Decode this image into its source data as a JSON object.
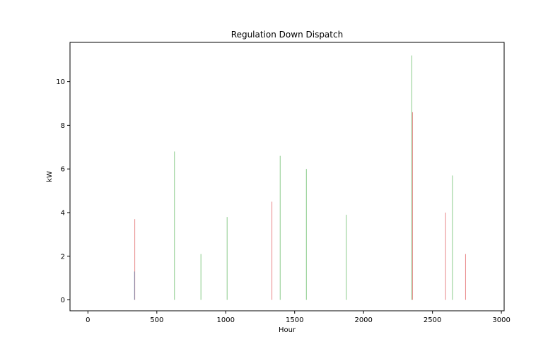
{
  "chart_data": {
    "type": "bar",
    "title": "Regulation Down Dispatch",
    "xlabel": "Hour",
    "ylabel": "kW",
    "xlim": [
      -130,
      3020
    ],
    "ylim": [
      -0.5,
      11.8
    ],
    "xticks": [
      0,
      500,
      1000,
      1500,
      2000,
      2500,
      3000
    ],
    "yticks": [
      0,
      2,
      4,
      6,
      8,
      10
    ],
    "grid": false,
    "legend": "none",
    "colors": {
      "series_a": "#2ca02c",
      "series_b": "#d62728",
      "series_c": "#1f77b4"
    },
    "series": [
      {
        "color_key": "series_a",
        "x": [
          628,
          820,
          1010,
          1395,
          1585,
          1875,
          2350,
          2645
        ],
        "values": [
          6.8,
          2.1,
          3.8,
          6.6,
          6.0,
          3.9,
          11.2,
          5.7
        ]
      },
      {
        "color_key": "series_b",
        "x": [
          340,
          1335,
          2355,
          2595,
          2740
        ],
        "values": [
          3.7,
          4.5,
          8.6,
          4.0,
          2.1
        ]
      },
      {
        "color_key": "series_c",
        "x": [
          338
        ],
        "values": [
          1.3
        ]
      }
    ]
  }
}
